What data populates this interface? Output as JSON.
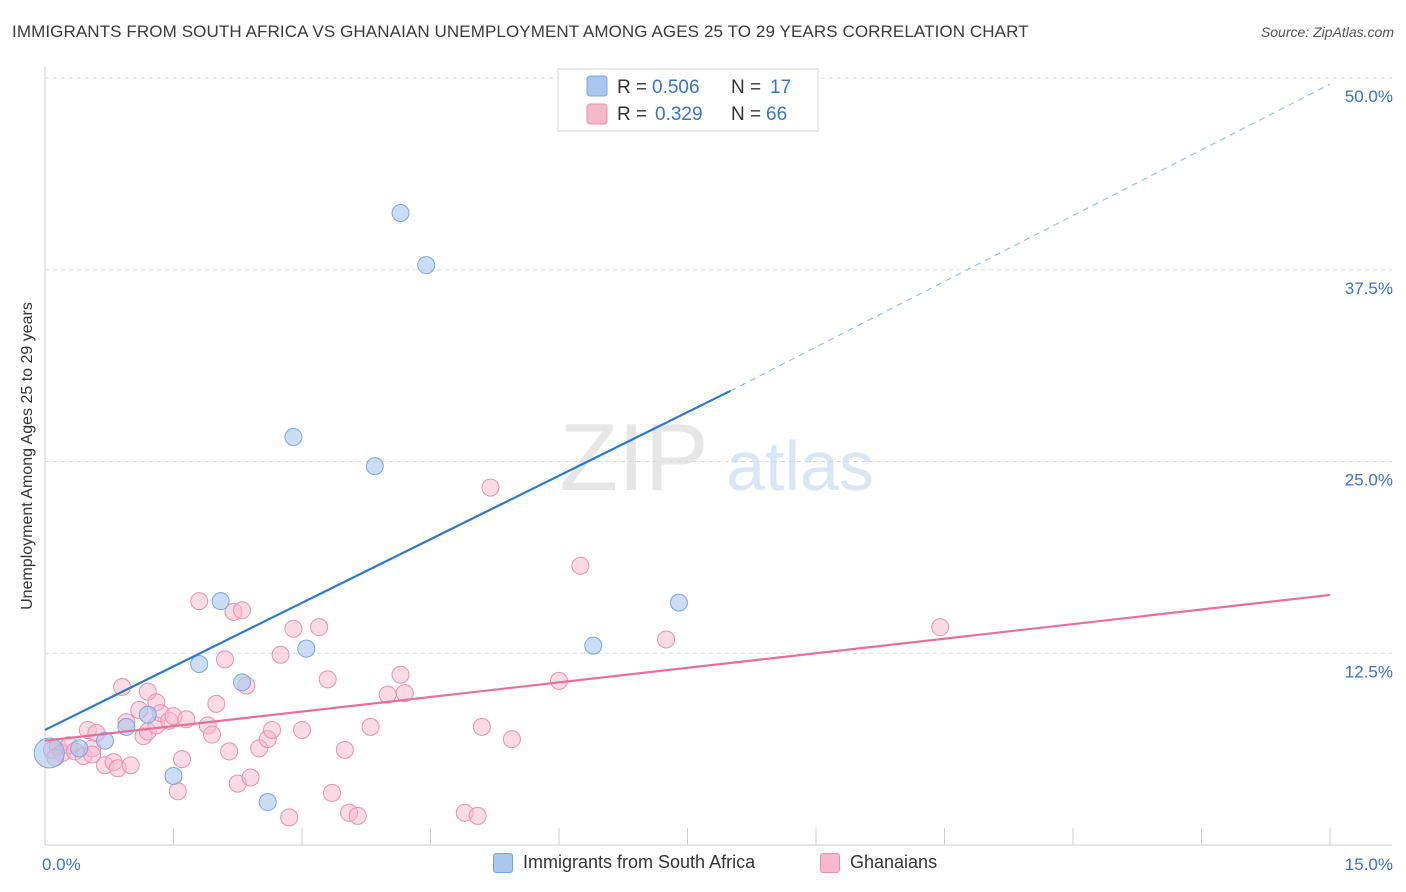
{
  "header": {
    "title": "IMMIGRANTS FROM SOUTH AFRICA VS GHANAIAN UNEMPLOYMENT AMONG AGES 25 TO 29 YEARS CORRELATION CHART",
    "source": "Source: ZipAtlas.com"
  },
  "watermark": {
    "zip": "ZIP",
    "atlas": "atlas"
  },
  "colors": {
    "blue_fill": "#a9c6ef",
    "blue_stroke": "#7aa6e0",
    "blue_line": "#2f78cf",
    "pink_fill": "#f6b8cb",
    "pink_stroke": "#eb8fb0",
    "pink_line": "#e76f98",
    "axis_label": "#3a73c8",
    "grid": "#d9d9d9"
  },
  "legend": {
    "rows": [
      {
        "r_label": "R =",
        "r_value": "0.506",
        "n_label": "N =",
        "n_value": "17"
      },
      {
        "r_label": "R =",
        "r_value": "0.329",
        "n_label": "N =",
        "n_value": "66"
      }
    ]
  },
  "bottom_legend": {
    "series1": "Immigrants from South Africa",
    "series2": "Ghanaians"
  },
  "chart_data": {
    "type": "scatter",
    "title": "IMMIGRANTS FROM SOUTH AFRICA VS GHANAIAN UNEMPLOYMENT AMONG AGES 25 TO 29 YEARS CORRELATION CHART",
    "xlabel": "",
    "ylabel": "Unemployment Among Ages 25 to 29 years",
    "xlim": [
      0,
      15
    ],
    "ylim": [
      0,
      50
    ],
    "x_tick_labels": [
      {
        "value": 0,
        "label": "0.0%"
      },
      {
        "value": 15,
        "label": "15.0%"
      }
    ],
    "y_tick_labels": [
      {
        "value": 12.5,
        "label": "12.5%"
      },
      {
        "value": 25,
        "label": "25.0%"
      },
      {
        "value": 37.5,
        "label": "37.5%"
      },
      {
        "value": 50,
        "label": "50.0%"
      }
    ],
    "grid": true,
    "series": [
      {
        "name": "Immigrants from South Africa",
        "r": 0.506,
        "n": 17,
        "trend": {
          "x0": 0,
          "y0": 7.5,
          "x1": 8.0,
          "y1": 29.6,
          "dash_to_x": 15.0,
          "dash_to_y": 49.6
        },
        "points": [
          {
            "x": 0.05,
            "y": 6.0,
            "big": true
          },
          {
            "x": 0.4,
            "y": 6.3
          },
          {
            "x": 0.7,
            "y": 6.8
          },
          {
            "x": 0.95,
            "y": 7.7
          },
          {
            "x": 1.2,
            "y": 8.5
          },
          {
            "x": 1.5,
            "y": 4.5
          },
          {
            "x": 1.8,
            "y": 11.8
          },
          {
            "x": 2.05,
            "y": 15.9
          },
          {
            "x": 2.3,
            "y": 10.6
          },
          {
            "x": 2.6,
            "y": 2.8
          },
          {
            "x": 2.9,
            "y": 26.6
          },
          {
            "x": 3.05,
            "y": 12.8
          },
          {
            "x": 3.85,
            "y": 24.7
          },
          {
            "x": 4.15,
            "y": 41.2
          },
          {
            "x": 4.45,
            "y": 37.8
          },
          {
            "x": 6.4,
            "y": 13.0
          },
          {
            "x": 7.4,
            "y": 15.8
          }
        ]
      },
      {
        "name": "Ghanaians",
        "r": 0.329,
        "n": 66,
        "trend": {
          "x0": 0,
          "y0": 6.8,
          "x1": 15.0,
          "y1": 16.3
        },
        "points": [
          {
            "x": 0.08,
            "y": 6.2
          },
          {
            "x": 0.15,
            "y": 6.4
          },
          {
            "x": 0.2,
            "y": 6.0
          },
          {
            "x": 0.28,
            "y": 6.5
          },
          {
            "x": 0.35,
            "y": 6.1
          },
          {
            "x": 0.45,
            "y": 5.8
          },
          {
            "x": 0.5,
            "y": 7.5
          },
          {
            "x": 0.55,
            "y": 6.3
          },
          {
            "x": 0.6,
            "y": 7.3
          },
          {
            "x": 0.7,
            "y": 5.2
          },
          {
            "x": 0.8,
            "y": 5.4
          },
          {
            "x": 0.85,
            "y": 5.0
          },
          {
            "x": 0.9,
            "y": 10.3
          },
          {
            "x": 0.95,
            "y": 8.0
          },
          {
            "x": 1.0,
            "y": 5.2
          },
          {
            "x": 1.1,
            "y": 8.8
          },
          {
            "x": 1.15,
            "y": 7.1
          },
          {
            "x": 1.2,
            "y": 7.4
          },
          {
            "x": 1.2,
            "y": 10.0
          },
          {
            "x": 1.3,
            "y": 9.3
          },
          {
            "x": 1.3,
            "y": 7.8
          },
          {
            "x": 1.35,
            "y": 8.6
          },
          {
            "x": 1.45,
            "y": 8.1
          },
          {
            "x": 1.5,
            "y": 8.4
          },
          {
            "x": 1.55,
            "y": 3.5
          },
          {
            "x": 1.6,
            "y": 5.6
          },
          {
            "x": 1.65,
            "y": 8.2
          },
          {
            "x": 1.8,
            "y": 15.9
          },
          {
            "x": 1.9,
            "y": 7.8
          },
          {
            "x": 1.95,
            "y": 7.2
          },
          {
            "x": 2.0,
            "y": 9.2
          },
          {
            "x": 2.1,
            "y": 12.1
          },
          {
            "x": 2.15,
            "y": 6.1
          },
          {
            "x": 2.2,
            "y": 15.2
          },
          {
            "x": 2.25,
            "y": 4.0
          },
          {
            "x": 2.3,
            "y": 15.3
          },
          {
            "x": 2.35,
            "y": 10.4
          },
          {
            "x": 2.4,
            "y": 4.4
          },
          {
            "x": 2.5,
            "y": 6.3
          },
          {
            "x": 2.6,
            "y": 6.9
          },
          {
            "x": 2.65,
            "y": 7.5
          },
          {
            "x": 2.75,
            "y": 12.4
          },
          {
            "x": 2.85,
            "y": 1.8
          },
          {
            "x": 2.9,
            "y": 14.1
          },
          {
            "x": 3.0,
            "y": 7.5
          },
          {
            "x": 3.2,
            "y": 14.2
          },
          {
            "x": 3.3,
            "y": 10.8
          },
          {
            "x": 3.35,
            "y": 3.4
          },
          {
            "x": 3.5,
            "y": 6.2
          },
          {
            "x": 3.55,
            "y": 2.1
          },
          {
            "x": 3.65,
            "y": 1.9
          },
          {
            "x": 3.8,
            "y": 7.7
          },
          {
            "x": 4.0,
            "y": 9.8
          },
          {
            "x": 4.15,
            "y": 11.1
          },
          {
            "x": 4.2,
            "y": 9.9
          },
          {
            "x": 4.9,
            "y": 2.1
          },
          {
            "x": 5.05,
            "y": 1.9
          },
          {
            "x": 5.1,
            "y": 7.7
          },
          {
            "x": 5.2,
            "y": 23.3
          },
          {
            "x": 5.45,
            "y": 6.9
          },
          {
            "x": 6.0,
            "y": 10.7
          },
          {
            "x": 6.25,
            "y": 18.2
          },
          {
            "x": 7.25,
            "y": 13.4
          },
          {
            "x": 10.45,
            "y": 14.2
          },
          {
            "x": 0.55,
            "y": 5.9
          },
          {
            "x": 0.12,
            "y": 5.7
          }
        ]
      }
    ]
  }
}
